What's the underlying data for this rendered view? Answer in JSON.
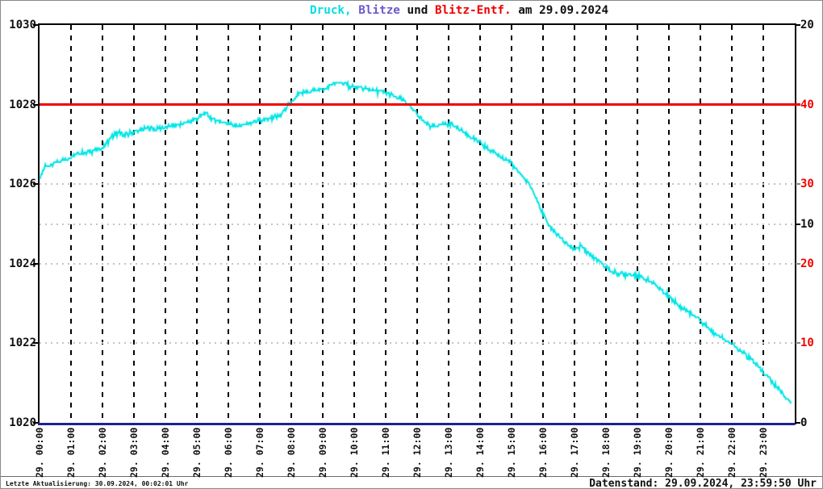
{
  "title": {
    "full": "Druck, Blitze und Blitz-Entf. am 29.09.2024",
    "parts": [
      {
        "text": "Druck,",
        "color": "#00dde0"
      },
      {
        "text": " Blitze",
        "color": "#6a5acd"
      },
      {
        "text": " und ",
        "color": "#111111"
      },
      {
        "text": "Blitz-Entf.",
        "color": "#ee0000"
      },
      {
        "text": " am 29.09.2024",
        "color": "#111111"
      }
    ]
  },
  "footer": {
    "left": "Letzte Aktualisierung: 30.09.2024, 00:02:01 Uhr",
    "right": "Datenstand: 29.09.2024, 23:59:50 Uhr"
  },
  "axes": {
    "left": {
      "ticks": [
        {
          "label": "1030",
          "value": 1030
        },
        {
          "label": "1028",
          "value": 1028
        },
        {
          "label": "1026",
          "value": 1026
        },
        {
          "label": "1024",
          "value": 1024
        },
        {
          "label": "1022",
          "value": 1022
        },
        {
          "label": "1020",
          "value": 1020
        }
      ],
      "range": [
        1020,
        1030
      ]
    },
    "right_black": {
      "ticks": [
        {
          "label": "20",
          "value": 20
        },
        {
          "label": "10",
          "value": 10
        },
        {
          "label": "0",
          "value": 0
        }
      ],
      "range": [
        0,
        20
      ],
      "color": "#111111"
    },
    "right_red": {
      "ticks": [
        {
          "label": "40",
          "value": 40
        },
        {
          "label": "30",
          "value": 30
        },
        {
          "label": "20",
          "value": 20
        },
        {
          "label": "10",
          "value": 10
        }
      ],
      "range": [
        0,
        50
      ],
      "color": "#ee0000"
    },
    "x": {
      "labels": [
        "29. 00:00",
        "29. 01:00",
        "29. 02:00",
        "29. 03:00",
        "29. 04:00",
        "29. 05:00",
        "29. 06:00",
        "29. 07:00",
        "29. 08:00",
        "29. 09:00",
        "29. 10:00",
        "29. 11:00",
        "29. 12:00",
        "29. 13:00",
        "29. 14:00",
        "29. 15:00",
        "29. 16:00",
        "29. 17:00",
        "29. 18:00",
        "29. 19:00",
        "29. 20:00",
        "29. 21:00",
        "29. 22:00",
        "29. 23:00"
      ]
    }
  },
  "chart_data": {
    "type": "line",
    "title": "Druck, Blitze und Blitz-Entf. am 29.09.2024",
    "x_unit": "hours",
    "xlim": [
      0,
      24
    ],
    "left_ylim": [
      1020,
      1030
    ],
    "right_black_ylim": [
      0,
      20
    ],
    "right_red_ylim": [
      0,
      50
    ],
    "grid": {
      "vertical": "hourly dashed black",
      "horizontal_pressure_levels": [
        1026,
        1025,
        1024,
        1022
      ]
    },
    "series": [
      {
        "name": "Druck",
        "axis": "left",
        "color": "#00e5e5",
        "points": [
          [
            0,
            1026.18
          ],
          [
            0.08,
            1026.3
          ],
          [
            0.2,
            1026.45
          ],
          [
            0.4,
            1026.52
          ],
          [
            0.6,
            1026.58
          ],
          [
            0.8,
            1026.62
          ],
          [
            1,
            1026.68
          ],
          [
            1.3,
            1026.76
          ],
          [
            1.6,
            1026.83
          ],
          [
            1.9,
            1026.87
          ],
          [
            2.1,
            1027.0
          ],
          [
            2.3,
            1027.18
          ],
          [
            2.5,
            1027.3
          ],
          [
            2.7,
            1027.22
          ],
          [
            2.9,
            1027.28
          ],
          [
            3.1,
            1027.35
          ],
          [
            3.4,
            1027.4
          ],
          [
            3.7,
            1027.38
          ],
          [
            4,
            1027.42
          ],
          [
            4.3,
            1027.48
          ],
          [
            4.6,
            1027.53
          ],
          [
            4.9,
            1027.62
          ],
          [
            5.1,
            1027.72
          ],
          [
            5.25,
            1027.78
          ],
          [
            5.5,
            1027.63
          ],
          [
            5.8,
            1027.57
          ],
          [
            6.1,
            1027.5
          ],
          [
            6.3,
            1027.44
          ],
          [
            6.5,
            1027.5
          ],
          [
            6.8,
            1027.55
          ],
          [
            7.1,
            1027.6
          ],
          [
            7.4,
            1027.65
          ],
          [
            7.6,
            1027.7
          ],
          [
            7.8,
            1027.85
          ],
          [
            7.9,
            1028.02
          ],
          [
            8.05,
            1028.08
          ],
          [
            8.2,
            1028.25
          ],
          [
            8.5,
            1028.32
          ],
          [
            8.8,
            1028.37
          ],
          [
            9.1,
            1028.42
          ],
          [
            9.3,
            1028.5
          ],
          [
            9.5,
            1028.57
          ],
          [
            9.65,
            1028.52
          ],
          [
            9.8,
            1028.47
          ],
          [
            10,
            1028.45
          ],
          [
            10.3,
            1028.4
          ],
          [
            10.6,
            1028.36
          ],
          [
            11,
            1028.3
          ],
          [
            11.3,
            1028.2
          ],
          [
            11.6,
            1028.08
          ],
          [
            11.8,
            1027.92
          ],
          [
            12,
            1027.75
          ],
          [
            12.2,
            1027.58
          ],
          [
            12.45,
            1027.45
          ],
          [
            12.7,
            1027.5
          ],
          [
            13.1,
            1027.5
          ],
          [
            13.3,
            1027.4
          ],
          [
            13.6,
            1027.25
          ],
          [
            13.9,
            1027.08
          ],
          [
            14.2,
            1026.92
          ],
          [
            14.5,
            1026.78
          ],
          [
            14.8,
            1026.62
          ],
          [
            15,
            1026.5
          ],
          [
            15.3,
            1026.25
          ],
          [
            15.6,
            1025.95
          ],
          [
            15.8,
            1025.6
          ],
          [
            16,
            1025.25
          ],
          [
            16.2,
            1024.95
          ],
          [
            16.5,
            1024.7
          ],
          [
            16.8,
            1024.45
          ],
          [
            17,
            1024.35
          ],
          [
            17.2,
            1024.45
          ],
          [
            17.4,
            1024.3
          ],
          [
            17.6,
            1024.15
          ],
          [
            17.8,
            1024.05
          ],
          [
            18,
            1023.9
          ],
          [
            18.2,
            1023.8
          ],
          [
            18.5,
            1023.72
          ],
          [
            18.8,
            1023.75
          ],
          [
            19,
            1023.7
          ],
          [
            19.3,
            1023.6
          ],
          [
            19.6,
            1023.45
          ],
          [
            19.8,
            1023.32
          ],
          [
            20,
            1023.2
          ],
          [
            20.3,
            1022.95
          ],
          [
            20.6,
            1022.8
          ],
          [
            20.9,
            1022.65
          ],
          [
            21.1,
            1022.5
          ],
          [
            21.4,
            1022.28
          ],
          [
            21.7,
            1022.15
          ],
          [
            22,
            1022.0
          ],
          [
            22.3,
            1021.78
          ],
          [
            22.6,
            1021.6
          ],
          [
            22.9,
            1021.35
          ],
          [
            23.2,
            1021.1
          ],
          [
            23.5,
            1020.85
          ],
          [
            23.75,
            1020.6
          ],
          [
            23.9,
            1020.52
          ]
        ]
      },
      {
        "name": "Blitze",
        "axis": "right_black",
        "color": "#202095",
        "constant_value": 0
      },
      {
        "name": "Blitz-Entf.",
        "axis": "right_red",
        "color": "#ee0000",
        "constant_value": 40
      }
    ]
  }
}
